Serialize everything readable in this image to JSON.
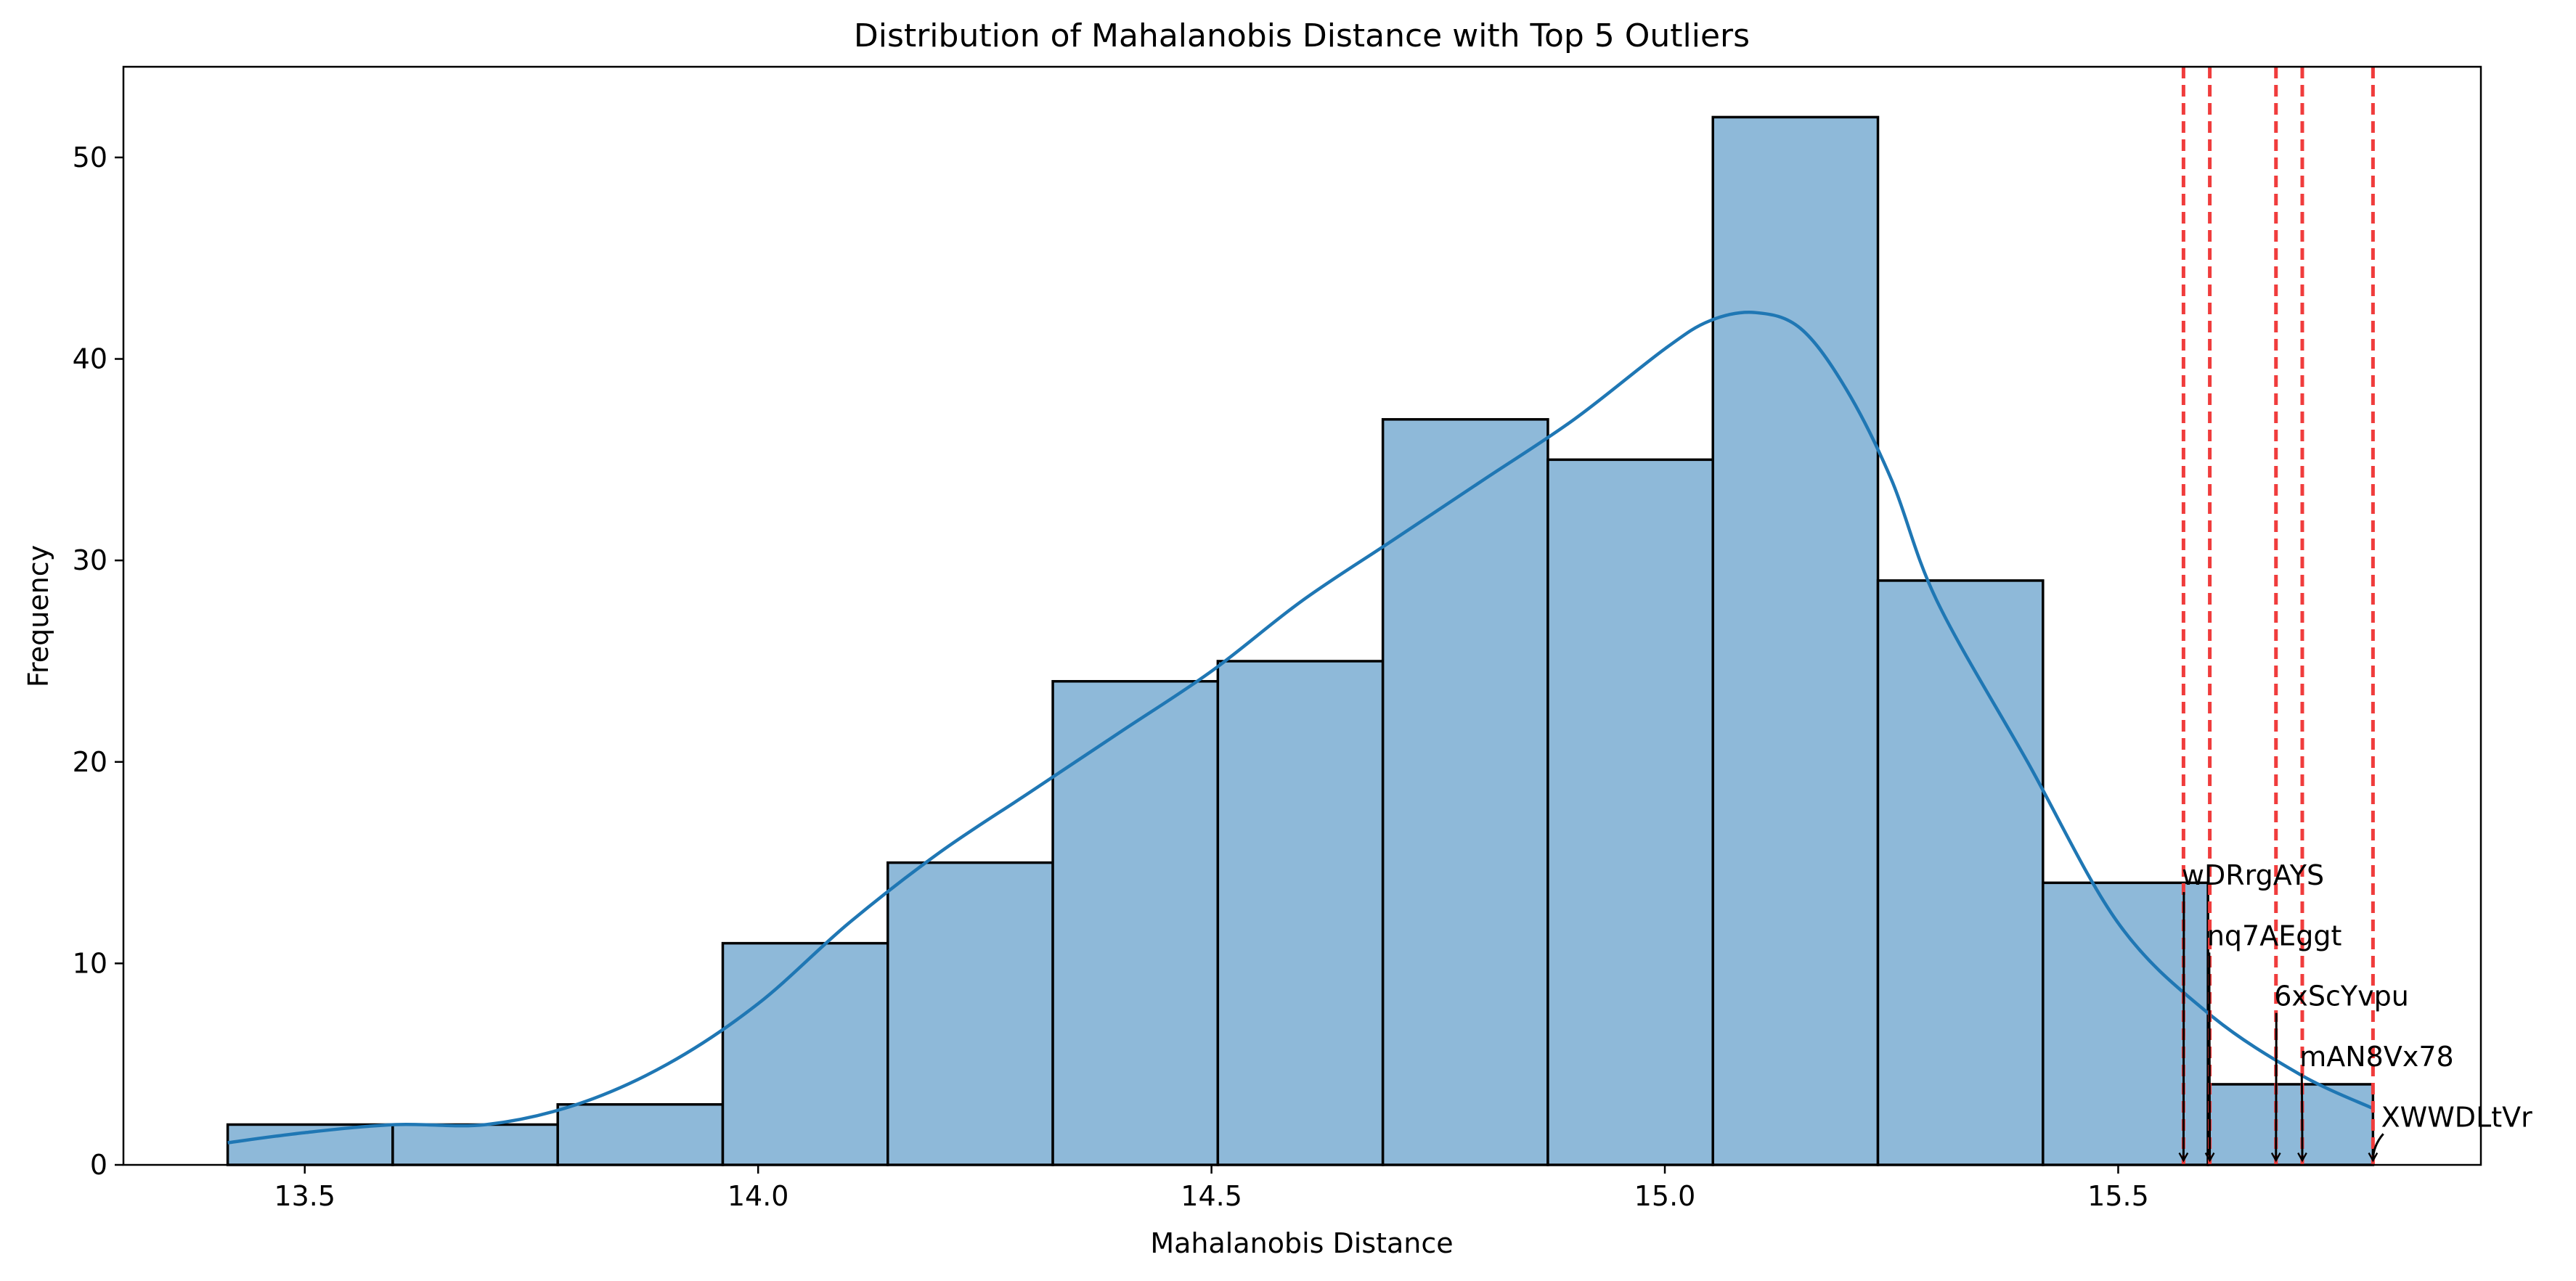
{
  "chart_data": {
    "type": "histogram",
    "title": "Distribution of Mahalanobis Distance with Top 5 Outliers",
    "xlabel": "Mahalanobis Distance",
    "ylabel": "Frequency",
    "xlim": [
      13.3,
      15.9
    ],
    "ylim": [
      0,
      54.5
    ],
    "x_ticks": [
      13.5,
      14.0,
      14.5,
      15.0,
      15.5
    ],
    "x_tick_labels": [
      "13.5",
      "14.0",
      "14.5",
      "15.0",
      "15.5"
    ],
    "y_ticks": [
      0,
      10,
      20,
      30,
      40,
      50
    ],
    "y_tick_labels": [
      "0",
      "10",
      "20",
      "30",
      "40",
      "50"
    ],
    "bins": [
      {
        "x0": 13.415,
        "x1": 13.597,
        "count": 2
      },
      {
        "x0": 13.597,
        "x1": 13.779,
        "count": 2
      },
      {
        "x0": 13.779,
        "x1": 13.961,
        "count": 3
      },
      {
        "x0": 13.961,
        "x1": 14.143,
        "count": 11
      },
      {
        "x0": 14.143,
        "x1": 14.325,
        "count": 15
      },
      {
        "x0": 14.325,
        "x1": 14.507,
        "count": 24
      },
      {
        "x0": 14.507,
        "x1": 14.689,
        "count": 25
      },
      {
        "x0": 14.689,
        "x1": 14.871,
        "count": 37
      },
      {
        "x0": 14.871,
        "x1": 15.053,
        "count": 35
      },
      {
        "x0": 15.053,
        "x1": 15.235,
        "count": 52
      },
      {
        "x0": 15.235,
        "x1": 15.417,
        "count": 29
      },
      {
        "x0": 15.417,
        "x1": 15.599,
        "count": 14
      },
      {
        "x0": 15.599,
        "x1": 15.781,
        "count": 4
      }
    ],
    "kde": {
      "x": [
        13.415,
        13.5,
        13.6,
        13.7,
        13.8,
        13.9,
        14.0,
        14.1,
        14.2,
        14.3,
        14.4,
        14.5,
        14.6,
        14.7,
        14.8,
        14.9,
        15.0,
        15.05,
        15.1,
        15.15,
        15.2,
        15.25,
        15.3,
        15.4,
        15.5,
        15.6,
        15.7,
        15.781
      ],
      "y": [
        1.1,
        1.6,
        2.0,
        2.0,
        3.0,
        5.0,
        8.0,
        12.0,
        15.5,
        18.5,
        21.5,
        24.5,
        28.0,
        31.0,
        34.0,
        37.0,
        40.5,
        41.9,
        42.3,
        41.5,
        38.5,
        34.0,
        28.0,
        20.0,
        12.0,
        7.5,
        4.5,
        2.8
      ]
    },
    "outliers": [
      {
        "label": "wDRrgAYS",
        "x": 15.572,
        "text_x": 15.57,
        "text_y": 13.9
      },
      {
        "label": "nq7AEggt",
        "x": 15.601,
        "text_x": 15.598,
        "text_y": 10.9
      },
      {
        "label": "6xScYvpu",
        "x": 15.674,
        "text_x": 15.672,
        "text_y": 7.9
      },
      {
        "label": "mAN8Vx78",
        "x": 15.703,
        "text_x": 15.7,
        "text_y": 4.9
      },
      {
        "label": "XWWDLtVr",
        "x": 15.781,
        "text_x": 15.79,
        "text_y": 1.9
      }
    ],
    "colors": {
      "bar_fill": "#8EB9D9",
      "bar_edge": "#000000",
      "kde_line": "#1F77B4",
      "outlier_line": "#F03C3C"
    }
  }
}
